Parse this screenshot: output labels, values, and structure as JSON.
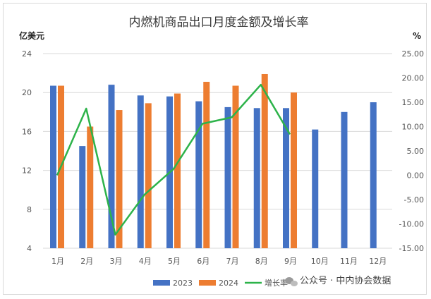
{
  "chart_data": {
    "type": "bar",
    "title": "内燃机商品出口月度金额及增长率",
    "y_left_unit": "亿美元",
    "y_right_unit": "%",
    "categories": [
      "1月",
      "2月",
      "3月",
      "4月",
      "5月",
      "6月",
      "7月",
      "8月",
      "9月",
      "10月",
      "11月",
      "12月"
    ],
    "series": [
      {
        "name": "2023",
        "type": "bar",
        "color": "#4472C4",
        "values": [
          20.7,
          14.5,
          20.8,
          19.7,
          19.6,
          19.1,
          18.5,
          18.4,
          18.4,
          16.2,
          18.0,
          19.0
        ]
      },
      {
        "name": "2024",
        "type": "bar",
        "color": "#ED7D31",
        "values": [
          20.7,
          16.5,
          18.2,
          18.9,
          19.9,
          21.1,
          20.7,
          21.9,
          20.0,
          null,
          null,
          null
        ]
      },
      {
        "name": "增长率",
        "type": "line",
        "axis": "right",
        "color": "#2DB34A",
        "values": [
          0.0,
          13.7,
          -12.2,
          -4.0,
          1.3,
          10.6,
          11.9,
          18.6,
          8.4,
          null,
          null,
          null
        ]
      }
    ],
    "y_left_range": [
      4,
      24
    ],
    "y_left_ticks": [
      "4",
      "8",
      "12",
      "16",
      "20",
      "24"
    ],
    "y_right_range": [
      -15,
      25
    ],
    "y_right_ticks": [
      "-15.00",
      "-10.00",
      "-5.00",
      "0.00",
      "5.00",
      "10.00",
      "15.00",
      "20.00",
      "25.00"
    ],
    "grid": true,
    "legend_position": "bottom"
  },
  "watermark": {
    "icon": "wechat-icon",
    "text": "公众号 · 中内协会数据"
  }
}
